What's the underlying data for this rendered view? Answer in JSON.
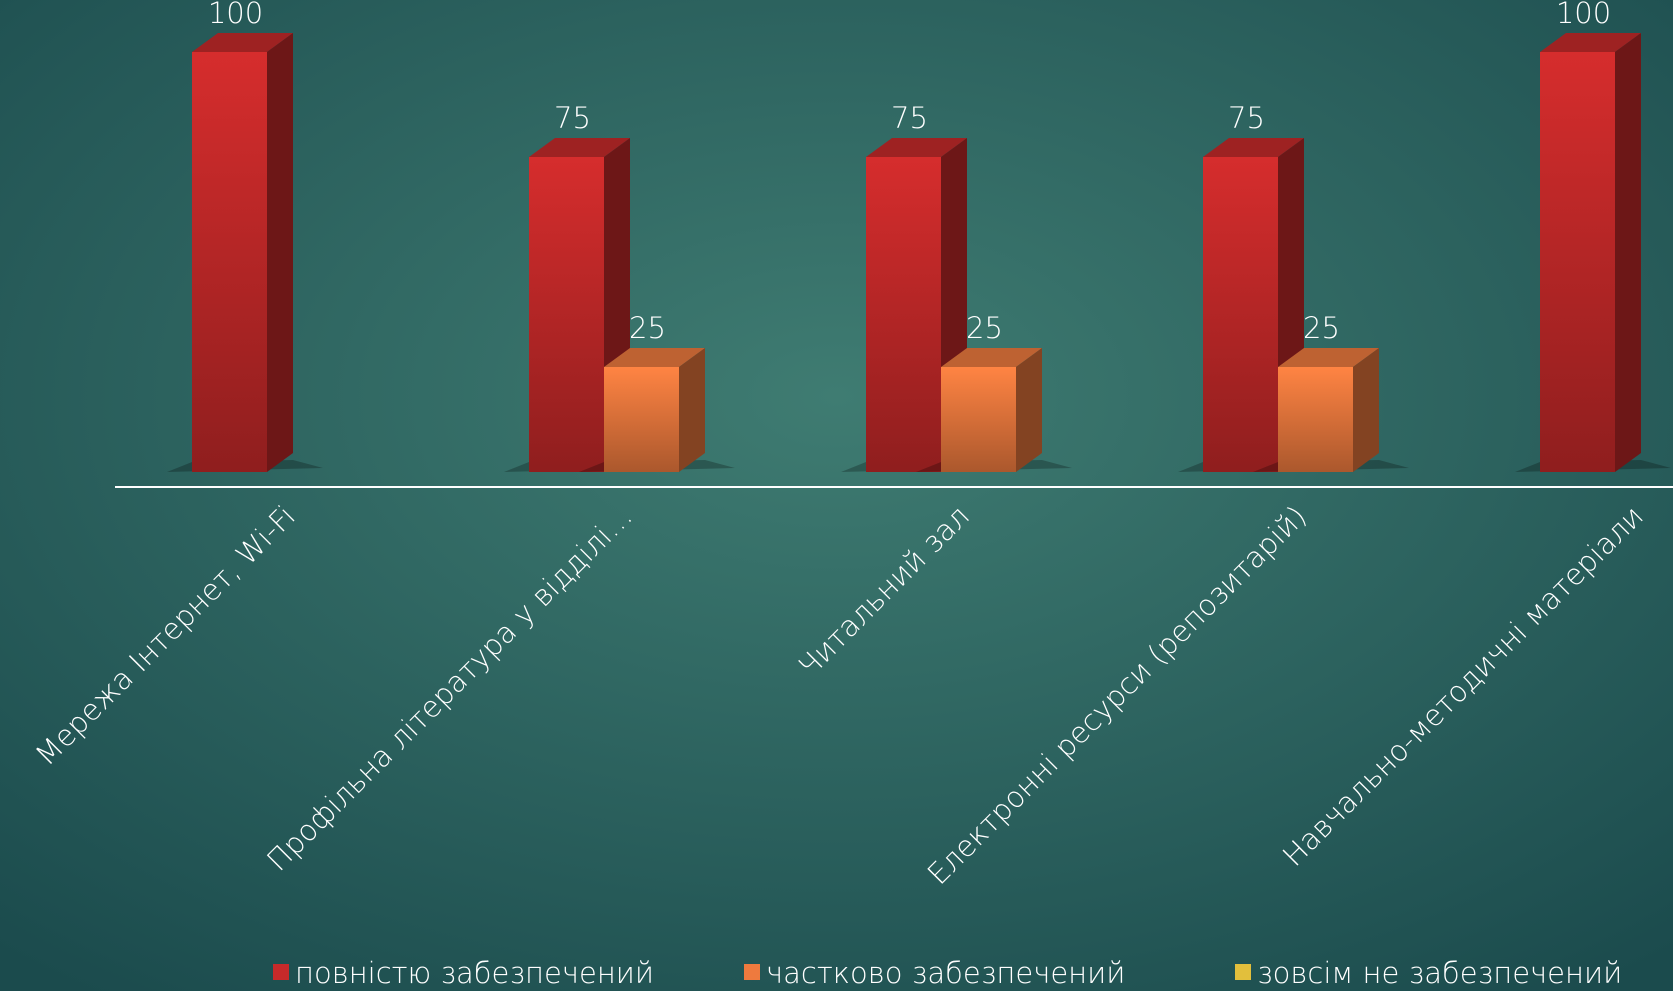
{
  "chart_data": {
    "type": "bar3d",
    "categories": [
      "Мережа Інтернет, Wi-Fi",
      "Профільна література у відділі…",
      "Читальний зал",
      "Електронні ресурси (репозитарій)",
      "Навчально-методичні матеріали"
    ],
    "series": [
      {
        "name": "повністю забезпечений",
        "color": "#c62a2a",
        "values": [
          100,
          75,
          75,
          75,
          100
        ]
      },
      {
        "name": "частково забезпечений",
        "color": "#ee7a3e",
        "values": [
          null,
          25,
          25,
          25,
          null
        ]
      },
      {
        "name": "зовсім не забезпечений",
        "color": "#e2bf3c",
        "values": [
          null,
          null,
          null,
          null,
          null
        ]
      }
    ]
  }
}
